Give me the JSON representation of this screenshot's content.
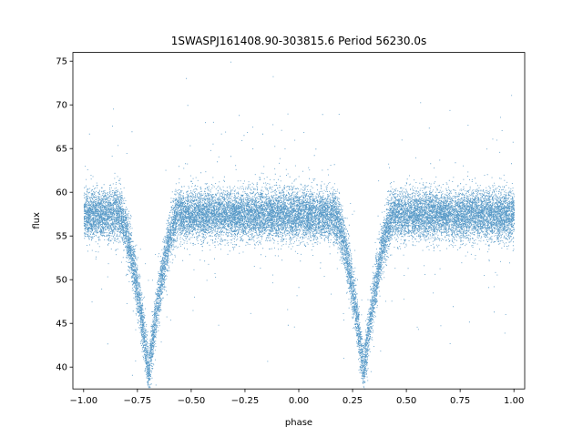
{
  "chart_data": {
    "type": "scatter",
    "title": "1SWASPJ161408.90-303815.6 Period 56230.0s",
    "xlabel": "phase",
    "ylabel": "flux",
    "xlim": [
      -1.05,
      1.05
    ],
    "ylim": [
      37.5,
      76.0
    ],
    "x_ticks": [
      -1.0,
      -0.75,
      -0.5,
      -0.25,
      0.0,
      0.25,
      0.5,
      0.75,
      1.0
    ],
    "x_tick_labels": [
      "−1.00",
      "−0.75",
      "−0.50",
      "−0.25",
      "0.00",
      "0.25",
      "0.50",
      "0.75",
      "1.00"
    ],
    "y_ticks": [
      40,
      45,
      50,
      55,
      60,
      65,
      70,
      75
    ],
    "y_tick_labels": [
      "40",
      "45",
      "50",
      "55",
      "60",
      "65",
      "70",
      "75"
    ],
    "grid": false,
    "legend": "none",
    "point_color": "#1f77b4",
    "series": [
      {
        "baseline_flux": 57.5,
        "scatter_sd": 1.4,
        "primary_eclipse_phases": [
          -0.7,
          0.3
        ],
        "min_flux": 39.5,
        "eclipse_half_width": 0.14,
        "phase_range": [
          -1.0,
          1.0
        ],
        "approx_points": 24000
      }
    ]
  }
}
